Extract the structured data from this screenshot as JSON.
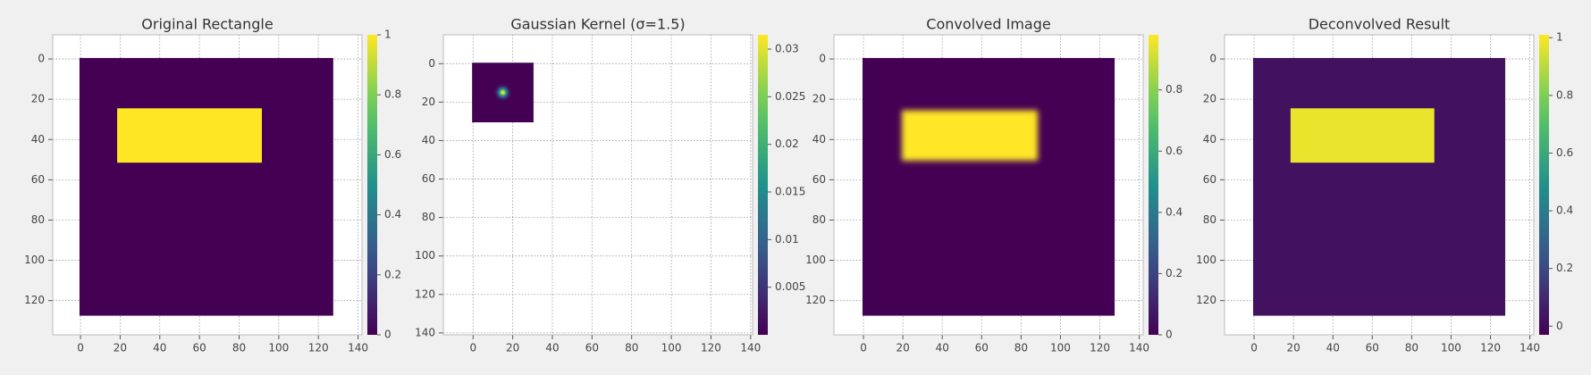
{
  "chart_data": [
    {
      "type": "image",
      "title": "Original Rectangle",
      "cmap": "viridis",
      "grid": true,
      "xlim": [
        -14,
        142
      ],
      "ylim": [
        137,
        -12
      ],
      "xticks": [
        0,
        20,
        40,
        60,
        80,
        100,
        120,
        140
      ],
      "yticks": [
        0,
        20,
        40,
        60,
        80,
        100,
        120
      ],
      "clim": [
        0,
        1
      ],
      "cticks": [
        0,
        0.2,
        0.4,
        0.6,
        0.8,
        1
      ],
      "regions": [
        {
          "x": [
            -0.5,
            127.5
          ],
          "y": [
            -0.5,
            127.5
          ],
          "value": 0
        },
        {
          "x": [
            18.5,
            91.5
          ],
          "y": [
            24.5,
            51.5
          ],
          "value": 1
        }
      ]
    },
    {
      "type": "image",
      "title": "Gaussian Kernel (σ=1.5)",
      "cmap": "viridis",
      "grid": true,
      "xlim": [
        -15,
        141
      ],
      "ylim": [
        141,
        -15
      ],
      "xticks": [
        0,
        20,
        40,
        60,
        80,
        100,
        120,
        140
      ],
      "yticks": [
        0,
        20,
        40,
        60,
        80,
        100,
        120,
        140
      ],
      "clim": [
        0,
        0.0315
      ],
      "cticks": [
        0.005,
        0.01,
        0.015,
        0.02,
        0.025,
        0.03
      ],
      "regions": [
        {
          "x": [
            -0.5,
            30.5
          ],
          "y": [
            -0.5,
            30.5
          ],
          "value": 0
        }
      ],
      "peaks": [
        {
          "x": 15,
          "y": 15,
          "sigma": 1.5,
          "value": 0.0315
        }
      ]
    },
    {
      "type": "image",
      "title": "Convolved Image",
      "cmap": "viridis",
      "grid": true,
      "xlim": [
        -15,
        142
      ],
      "ylim": [
        137,
        -12
      ],
      "xticks": [
        0,
        20,
        40,
        60,
        80,
        100,
        120,
        140
      ],
      "yticks": [
        0,
        20,
        40,
        60,
        80,
        100,
        120
      ],
      "clim": [
        0,
        0.98
      ],
      "cticks": [
        0,
        0.2,
        0.4,
        0.6,
        0.8
      ],
      "regions": [
        {
          "x": [
            -0.5,
            127.5
          ],
          "y": [
            -0.5,
            127.5
          ],
          "value": 0
        },
        {
          "x": [
            19.5,
            88.5
          ],
          "y": [
            25.5,
            50.5
          ],
          "value": 0.98,
          "sigma": 1.5
        }
      ]
    },
    {
      "type": "image",
      "title": "Deconvolved Result",
      "cmap": "viridis",
      "grid": true,
      "xlim": [
        -15,
        142
      ],
      "ylim": [
        137,
        -12
      ],
      "xticks": [
        0,
        20,
        40,
        60,
        80,
        100,
        120,
        140
      ],
      "yticks": [
        0,
        20,
        40,
        60,
        80,
        100,
        120
      ],
      "clim": [
        -0.03,
        1.01
      ],
      "cticks": [
        0,
        0.2,
        0.4,
        0.6,
        0.8,
        1
      ],
      "regions": [
        {
          "x": [
            -0.5,
            127.5
          ],
          "y": [
            -0.5,
            127.5
          ],
          "value": 0.02
        },
        {
          "x": [
            18.5,
            91.5
          ],
          "y": [
            24.5,
            51.5
          ],
          "value": 0.98
        }
      ]
    }
  ]
}
